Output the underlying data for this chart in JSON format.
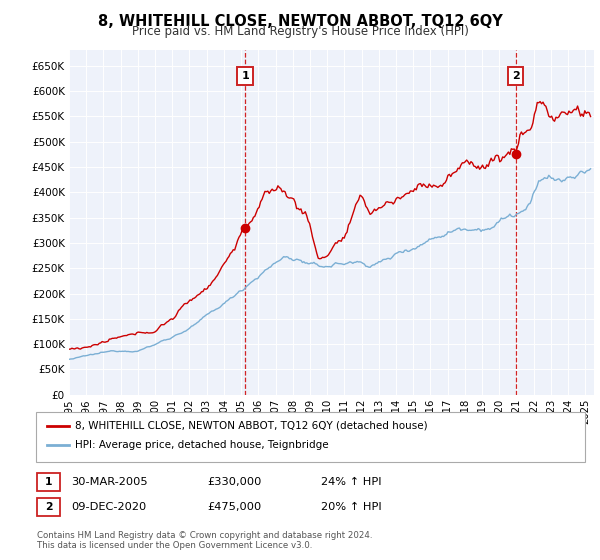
{
  "title": "8, WHITEHILL CLOSE, NEWTON ABBOT, TQ12 6QY",
  "subtitle": "Price paid vs. HM Land Registry's House Price Index (HPI)",
  "xlim": [
    1995.0,
    2025.5
  ],
  "ylim": [
    0,
    680000
  ],
  "yticks": [
    0,
    50000,
    100000,
    150000,
    200000,
    250000,
    300000,
    350000,
    400000,
    450000,
    500000,
    550000,
    600000,
    650000
  ],
  "ytick_labels": [
    "£0",
    "£50K",
    "£100K",
    "£150K",
    "£200K",
    "£250K",
    "£300K",
    "£350K",
    "£400K",
    "£450K",
    "£500K",
    "£550K",
    "£600K",
    "£650K"
  ],
  "xticks": [
    1995,
    1996,
    1997,
    1998,
    1999,
    2000,
    2001,
    2002,
    2003,
    2004,
    2005,
    2006,
    2007,
    2008,
    2009,
    2010,
    2011,
    2012,
    2013,
    2014,
    2015,
    2016,
    2017,
    2018,
    2019,
    2020,
    2021,
    2022,
    2023,
    2024,
    2025
  ],
  "red_color": "#cc0000",
  "blue_color": "#7bafd4",
  "marker1_x": 2005.24,
  "marker1_y": 330000,
  "marker2_x": 2020.94,
  "marker2_y": 475000,
  "vline1_x": 2005.24,
  "vline2_x": 2020.94,
  "legend_label_red": "8, WHITEHILL CLOSE, NEWTON ABBOT, TQ12 6QY (detached house)",
  "legend_label_blue": "HPI: Average price, detached house, Teignbridge",
  "table_row1": [
    "1",
    "30-MAR-2005",
    "£330,000",
    "24% ↑ HPI"
  ],
  "table_row2": [
    "2",
    "09-DEC-2020",
    "£475,000",
    "20% ↑ HPI"
  ],
  "footer": "Contains HM Land Registry data © Crown copyright and database right 2024.\nThis data is licensed under the Open Government Licence v3.0.",
  "bg_color": "#eef2fa",
  "fig_bg_color": "#ffffff"
}
